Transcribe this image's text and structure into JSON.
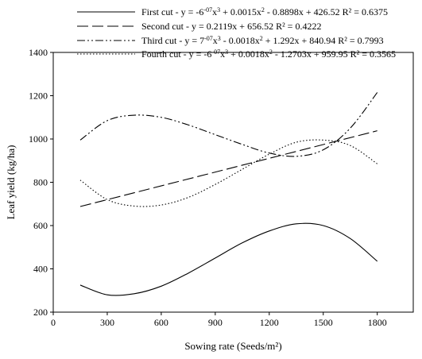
{
  "chart_data": {
    "type": "line",
    "xlabel": "Sowing rate (Seeds/m²)",
    "ylabel": "Leaf yield (kg/ha)",
    "xlim": [
      0,
      2000
    ],
    "ylim": [
      200,
      1400
    ],
    "x_ticks": [
      0,
      300,
      600,
      900,
      1200,
      1500,
      1800
    ],
    "y_ticks": [
      200,
      400,
      600,
      800,
      1000,
      1200,
      1400
    ],
    "x_range": [
      150,
      1800
    ],
    "grid": false,
    "legend_position": "top",
    "series": [
      {
        "name": "First cut",
        "label": {
          "lead": "First cut - y = -6",
          "sup1": "-07",
          "mid1": "x",
          "sup2": "3",
          "tail": " + 0.0015x",
          "sup3": "2",
          "end": " - 0.8898x + 426.52  R² = 0.6375"
        },
        "dash": "solid",
        "points": [
          [
            150,
            325
          ],
          [
            300,
            280
          ],
          [
            450,
            285
          ],
          [
            600,
            320
          ],
          [
            750,
            380
          ],
          [
            900,
            450
          ],
          [
            1050,
            520
          ],
          [
            1200,
            575
          ],
          [
            1350,
            608
          ],
          [
            1500,
            600
          ],
          [
            1650,
            540
          ],
          [
            1800,
            435
          ]
        ]
      },
      {
        "name": "Second cut",
        "label": {
          "lead": "Second cut - y = 0.2119x + 656.52  R² = 0.4222"
        },
        "dash": "long-dash",
        "points": [
          [
            150,
            688
          ],
          [
            1800,
            1038
          ]
        ]
      },
      {
        "name": "Third cut",
        "label": {
          "lead": "Third cut - y = 7",
          "sup1": "-07",
          "mid1": "x",
          "sup2": "3",
          "tail": " - 0.0018x",
          "sup3": "2",
          "end": " + 1.292x + 840.94  R² = 0.7993"
        },
        "dash": "dash-dot-dot",
        "points": [
          [
            150,
            995
          ],
          [
            300,
            1085
          ],
          [
            450,
            1110
          ],
          [
            600,
            1100
          ],
          [
            750,
            1065
          ],
          [
            900,
            1020
          ],
          [
            1050,
            975
          ],
          [
            1200,
            935
          ],
          [
            1350,
            920
          ],
          [
            1500,
            950
          ],
          [
            1650,
            1050
          ],
          [
            1800,
            1215
          ]
        ]
      },
      {
        "name": "Fourth cut",
        "label": {
          "lead": "Fourth cut - y = -6",
          "sup1": "-07",
          "mid1": "x",
          "sup2": "3",
          "tail": " + 0.0018x",
          "sup3": "2",
          "end": " - 1.2703x + 959.95  R² = 0.3565"
        },
        "dash": "dotted",
        "points": [
          [
            150,
            810
          ],
          [
            300,
            720
          ],
          [
            450,
            690
          ],
          [
            600,
            695
          ],
          [
            750,
            730
          ],
          [
            900,
            790
          ],
          [
            1050,
            860
          ],
          [
            1200,
            930
          ],
          [
            1350,
            985
          ],
          [
            1500,
            995
          ],
          [
            1650,
            970
          ],
          [
            1800,
            885
          ]
        ]
      }
    ]
  }
}
